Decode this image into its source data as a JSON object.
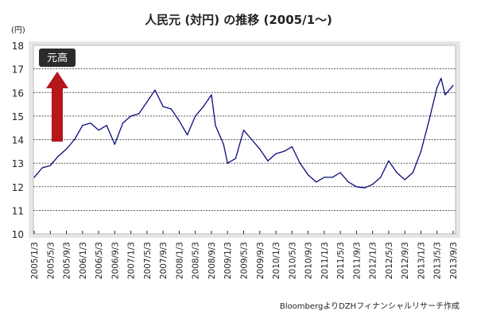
{
  "chart_data": {
    "type": "line",
    "title": "人民元 (対円) の推移 (2005/1〜)",
    "ylabel": "(円)",
    "xlabel": "",
    "ylim": [
      10,
      18
    ],
    "yticks": [
      10,
      11,
      12,
      13,
      14,
      15,
      16,
      17,
      18
    ],
    "grid": true,
    "xtick_labels": [
      "2005/1/3",
      "2005/5/3",
      "2005/9/3",
      "2006/1/3",
      "2006/5/3",
      "2006/9/3",
      "2007/1/3",
      "2007/5/3",
      "2007/9/3",
      "2008/1/3",
      "2008/5/3",
      "2008/9/3",
      "2009/1/3",
      "2009/5/3",
      "2009/9/3",
      "2010/1/3",
      "2010/5/3",
      "2010/9/3",
      "2011/1/3",
      "2011/5/3",
      "2011/9/3",
      "2012/1/3",
      "2012/5/3",
      "2012/9/3",
      "2013/1/3",
      "2013/5/3",
      "2013/9/3"
    ],
    "series": [
      {
        "name": "人民元/円",
        "color": "#0a0a7a",
        "x": [
          "2005/1",
          "2005/3",
          "2005/5",
          "2005/7",
          "2005/9",
          "2005/11",
          "2006/1",
          "2006/3",
          "2006/5",
          "2006/7",
          "2006/9",
          "2006/11",
          "2007/1",
          "2007/3",
          "2007/5",
          "2007/7",
          "2007/9",
          "2007/11",
          "2008/1",
          "2008/3",
          "2008/5",
          "2008/7",
          "2008/9",
          "2008/10",
          "2008/12",
          "2009/1",
          "2009/3",
          "2009/5",
          "2009/7",
          "2009/9",
          "2009/11",
          "2010/1",
          "2010/3",
          "2010/5",
          "2010/7",
          "2010/9",
          "2010/11",
          "2011/1",
          "2011/3",
          "2011/5",
          "2011/7",
          "2011/9",
          "2011/11",
          "2012/1",
          "2012/3",
          "2012/5",
          "2012/7",
          "2012/9",
          "2012/11",
          "2013/1",
          "2013/3",
          "2013/5",
          "2013/6",
          "2013/7",
          "2013/9"
        ],
        "values": [
          12.4,
          12.8,
          12.9,
          13.3,
          13.6,
          14.0,
          14.6,
          14.7,
          14.4,
          14.6,
          13.8,
          14.7,
          15.0,
          15.1,
          15.6,
          16.1,
          15.4,
          15.3,
          14.8,
          14.2,
          15.0,
          15.4,
          15.9,
          14.6,
          13.8,
          13.0,
          13.2,
          14.4,
          14.0,
          13.6,
          13.1,
          13.4,
          13.5,
          13.7,
          13.0,
          12.5,
          12.2,
          12.4,
          12.4,
          12.6,
          12.2,
          12.0,
          11.95,
          12.1,
          12.4,
          13.1,
          12.6,
          12.3,
          12.6,
          13.5,
          14.8,
          16.2,
          16.6,
          15.9,
          16.3
        ]
      }
    ],
    "annotation": {
      "label": "元高",
      "arrow_color": "#b5171b"
    },
    "legend": "none"
  },
  "source": "BloombergよりDZHフィナンシャルリサーチ作成"
}
